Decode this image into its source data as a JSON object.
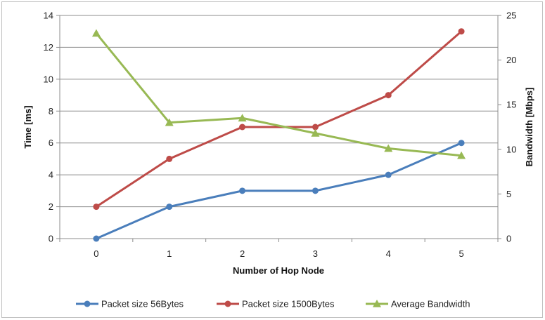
{
  "chart_data": {
    "type": "line",
    "title": "",
    "xlabel": "Number of Hop Node",
    "ylabel": "Time [ms]",
    "y2label": "Bandwidth [Mbps]",
    "x": [
      0,
      1,
      2,
      3,
      4,
      5
    ],
    "x_ticks": [
      "0",
      "1",
      "2",
      "3",
      "4",
      "5"
    ],
    "ylim": [
      0,
      14
    ],
    "y_ticks": [
      "0",
      "2",
      "4",
      "6",
      "8",
      "10",
      "12",
      "14"
    ],
    "y2lim": [
      0,
      25
    ],
    "y2_ticks": [
      "0",
      "5",
      "10",
      "15",
      "20",
      "25"
    ],
    "grid": true,
    "legend_position": "bottom",
    "series": [
      {
        "name": "Packet size 56Bytes",
        "axis": "left",
        "marker": "circle",
        "color": "#4a7ebb",
        "values": [
          0,
          2,
          3,
          3,
          4,
          6
        ]
      },
      {
        "name": "Packet size 1500Bytes",
        "axis": "left",
        "marker": "circle",
        "color": "#be4b48",
        "values": [
          2,
          5,
          7,
          7,
          9,
          13
        ]
      },
      {
        "name": "Average Bandwidth",
        "axis": "right",
        "marker": "triangle",
        "color": "#98b954",
        "values": [
          23,
          13,
          13.5,
          11.8,
          10.1,
          9.3
        ]
      }
    ]
  }
}
